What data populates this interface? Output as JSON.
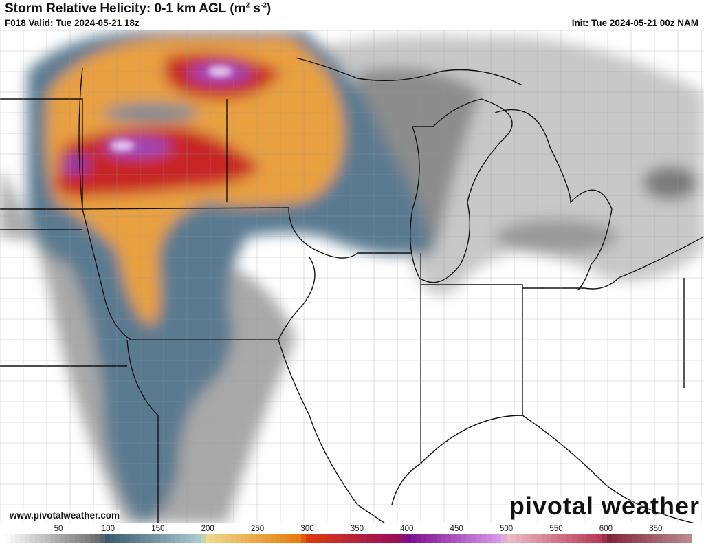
{
  "header": {
    "title": "Storm Relative Helicity: 0-1 km AGL",
    "units_base": "(m",
    "units_sup1": "2",
    "units_mid": " s",
    "units_sup2": "-2",
    "units_end": ")",
    "valid": "F018 Valid: Tue 2024-05-21 18z",
    "init": "Init: Tue 2024-05-21 00z NAM"
  },
  "footer": {
    "website": "www.pivotalweather.com",
    "logo_text": "pivotal weather"
  },
  "colorbar": {
    "labels": [
      "50",
      "100",
      "150",
      "200",
      "250",
      "300",
      "350",
      "400",
      "450",
      "500",
      "550",
      "600",
      "850"
    ],
    "stops": [
      {
        "v": 0,
        "c": "#fafafa"
      },
      {
        "v": 90,
        "c": "#6e6e6e"
      },
      {
        "v": 100,
        "c": "#3d5a70"
      },
      {
        "v": 190,
        "c": "#a8c8d0"
      },
      {
        "v": 200,
        "c": "#ecd98a"
      },
      {
        "v": 290,
        "c": "#e57c10"
      },
      {
        "v": 300,
        "c": "#dc3a12"
      },
      {
        "v": 390,
        "c": "#960f5a"
      },
      {
        "v": 400,
        "c": "#7a0e8e"
      },
      {
        "v": 490,
        "c": "#d898e8"
      },
      {
        "v": 500,
        "c": "#ecbcc4"
      },
      {
        "v": 590,
        "c": "#b83a56"
      },
      {
        "v": 600,
        "c": "#7e2a3a"
      },
      {
        "v": 680,
        "c": "#bc8890"
      }
    ]
  }
}
